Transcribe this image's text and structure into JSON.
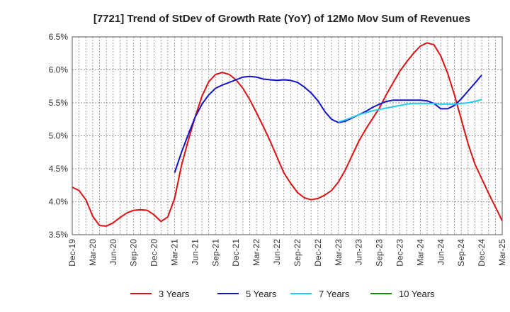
{
  "chart_data": {
    "type": "line",
    "title": "[7721]  Trend of StDev of Growth Rate (YoY) of 12Mo Mov Sum of Revenues",
    "xlabel": "",
    "ylabel": "",
    "ylim": [
      3.5,
      6.5
    ],
    "y_ticks": [
      3.5,
      4.0,
      4.5,
      5.0,
      5.5,
      6.0,
      6.5
    ],
    "y_tick_labels": [
      "3.5%",
      "4.0%",
      "4.5%",
      "5.0%",
      "5.5%",
      "6.0%",
      "6.5%"
    ],
    "x_tick_labels": [
      "Dec-19",
      "Mar-20",
      "Jun-20",
      "Sep-20",
      "Dec-20",
      "Mar-21",
      "Jun-21",
      "Sep-21",
      "Dec-21",
      "Mar-22",
      "Jun-22",
      "Sep-22",
      "Dec-22",
      "Mar-23",
      "Jun-23",
      "Sep-23",
      "Dec-23",
      "Mar-24",
      "Jun-24",
      "Sep-24",
      "Dec-24",
      "Mar-25"
    ],
    "grid": true,
    "legend_position": "bottom",
    "series": [
      {
        "name": "3 Years",
        "color": "#dd1111",
        "start_month": 0,
        "values": [
          4.22,
          4.17,
          4.03,
          3.78,
          3.64,
          3.63,
          3.68,
          3.76,
          3.83,
          3.87,
          3.88,
          3.87,
          3.8,
          3.7,
          3.77,
          4.05,
          4.55,
          4.93,
          5.28,
          5.6,
          5.82,
          5.93,
          5.96,
          5.93,
          5.85,
          5.72,
          5.55,
          5.35,
          5.14,
          4.92,
          4.68,
          4.44,
          4.28,
          4.14,
          4.06,
          4.03,
          4.05,
          4.1,
          4.17,
          4.3,
          4.48,
          4.7,
          4.92,
          5.1,
          5.26,
          5.42,
          5.62,
          5.8,
          5.98,
          6.12,
          6.25,
          6.36,
          6.41,
          6.38,
          6.21,
          5.95,
          5.62,
          5.25,
          4.88,
          4.57,
          4.35,
          4.13,
          3.92,
          3.71
        ]
      },
      {
        "name": "5 Years",
        "color": "#1111cc",
        "start_month": 15,
        "values": [
          4.44,
          4.75,
          5.02,
          5.28,
          5.48,
          5.62,
          5.72,
          5.77,
          5.81,
          5.85,
          5.89,
          5.9,
          5.89,
          5.86,
          5.85,
          5.84,
          5.85,
          5.84,
          5.81,
          5.74,
          5.65,
          5.53,
          5.37,
          5.25,
          5.2,
          5.22,
          5.27,
          5.32,
          5.37,
          5.43,
          5.48,
          5.52,
          5.54,
          5.54,
          5.54,
          5.54,
          5.54,
          5.53,
          5.49,
          5.41,
          5.41,
          5.46,
          5.56,
          5.68,
          5.8,
          5.92
        ]
      },
      {
        "name": "7 Years",
        "color": "#22ccee",
        "start_month": 39,
        "values": [
          5.21,
          5.24,
          5.28,
          5.32,
          5.35,
          5.38,
          5.4,
          5.42,
          5.44,
          5.46,
          5.48,
          5.49,
          5.49,
          5.49,
          5.49,
          5.48,
          5.48,
          5.48,
          5.49,
          5.5,
          5.52,
          5.55
        ]
      },
      {
        "name": "10 Years",
        "color": "#118811",
        "start_month": 0,
        "values": []
      }
    ]
  }
}
